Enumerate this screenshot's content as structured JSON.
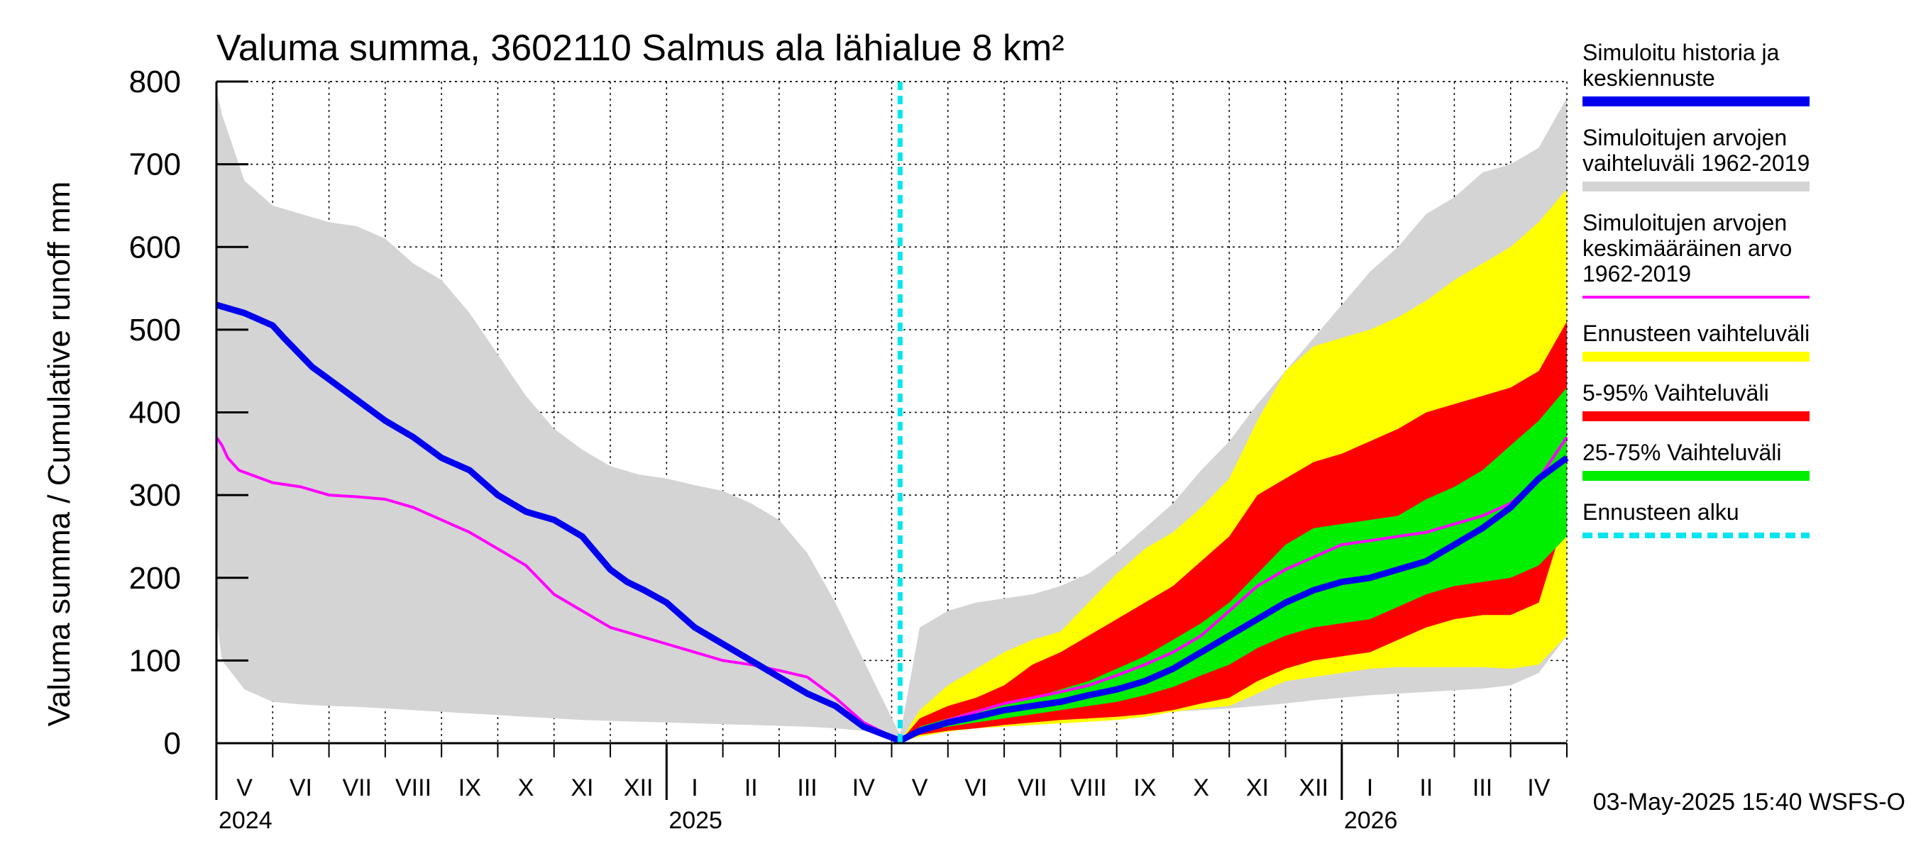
{
  "chart_data": {
    "type": "area",
    "title": "Valuma summa, 3602110 Salmus ala lähialue 8 km²",
    "ylabel": "Valuma summa / Cumulative runoff    mm",
    "ylim": [
      0,
      800
    ],
    "yticks": [
      0,
      100,
      200,
      300,
      400,
      500,
      600,
      700,
      800
    ],
    "x_range": [
      "2024-04-28",
      "2026-04-30"
    ],
    "forecast_start": "2025-05-03",
    "months": [
      {
        "label": "V",
        "start": 0
      },
      {
        "label": "VI",
        "start": 1
      },
      {
        "label": "VII",
        "start": 2
      },
      {
        "label": "VIII",
        "start": 3
      },
      {
        "label": "IX",
        "start": 4
      },
      {
        "label": "X",
        "start": 5
      },
      {
        "label": "XI",
        "start": 6
      },
      {
        "label": "XII",
        "start": 7
      },
      {
        "label": "I",
        "start": 8
      },
      {
        "label": "II",
        "start": 9
      },
      {
        "label": "III",
        "start": 10
      },
      {
        "label": "IV",
        "start": 11
      },
      {
        "label": "V",
        "start": 12
      },
      {
        "label": "VI",
        "start": 13
      },
      {
        "label": "VII",
        "start": 14
      },
      {
        "label": "VIII",
        "start": 15
      },
      {
        "label": "IX",
        "start": 16
      },
      {
        "label": "X",
        "start": 17
      },
      {
        "label": "XI",
        "start": 18
      },
      {
        "label": "XII",
        "start": 19
      },
      {
        "label": "I",
        "start": 20
      },
      {
        "label": "II",
        "start": 21
      },
      {
        "label": "III",
        "start": 22
      },
      {
        "label": "IV",
        "start": 23
      }
    ],
    "years": [
      {
        "label": "2024",
        "month_index": 0
      },
      {
        "label": "2025",
        "month_index": 8
      },
      {
        "label": "2026",
        "month_index": 20
      }
    ],
    "x_unit": "months since 2024-04-28",
    "series": [
      {
        "name": "Simuloitujen arvojen vaihteluväli 1962-2019",
        "kind": "band",
        "color": "#d4d4d4",
        "x": [
          0,
          0.1,
          0.5,
          1.0,
          1.5,
          2.0,
          2.5,
          3.0,
          3.5,
          4.0,
          4.5,
          5.0,
          5.5,
          6.0,
          6.5,
          7.0,
          7.5,
          8.0,
          8.5,
          9.0,
          9.5,
          10.0,
          10.5,
          11.0,
          11.5,
          12.15,
          12.5,
          13.0,
          13.5,
          14.0,
          14.5,
          15.0,
          15.5,
          16.0,
          16.5,
          17.0,
          17.5,
          18.0,
          18.5,
          19.0,
          19.5,
          20.0,
          20.5,
          21.0,
          21.5,
          22.0,
          22.5,
          23.0,
          23.5,
          24.0
        ],
        "upper": [
          790,
          760,
          680,
          650,
          640,
          630,
          625,
          610,
          580,
          560,
          520,
          470,
          420,
          380,
          355,
          335,
          325,
          320,
          312,
          305,
          290,
          270,
          230,
          170,
          100,
          10,
          140,
          160,
          170,
          175,
          180,
          190,
          205,
          230,
          260,
          290,
          330,
          365,
          410,
          450,
          490,
          530,
          570,
          600,
          640,
          660,
          690,
          700,
          720,
          780
        ],
        "lower": [
          150,
          100,
          65,
          50,
          47,
          45,
          44,
          42,
          40,
          38,
          36,
          34,
          32,
          30,
          28,
          27,
          26,
          25,
          24,
          23,
          22,
          21,
          20,
          18,
          15,
          5,
          10,
          16,
          20,
          23,
          26,
          28,
          30,
          32,
          36,
          38,
          40,
          42,
          45,
          48,
          52,
          55,
          58,
          60,
          62,
          64,
          66,
          70,
          85,
          130
        ]
      },
      {
        "name": "Ennusteen vaihteluväli",
        "kind": "band",
        "color": "#ffff00",
        "x": [
          12.15,
          12.5,
          13.0,
          13.5,
          14.0,
          14.5,
          15.0,
          15.5,
          16.0,
          16.5,
          17.0,
          17.5,
          18.0,
          18.5,
          19.0,
          19.5,
          20.0,
          20.5,
          21.0,
          21.5,
          22.0,
          22.5,
          23.0,
          23.5,
          24.0
        ],
        "upper": [
          2,
          40,
          70,
          90,
          110,
          125,
          135,
          170,
          205,
          235,
          255,
          285,
          320,
          390,
          450,
          480,
          490,
          500,
          515,
          535,
          560,
          580,
          600,
          630,
          670
        ],
        "lower": [
          2,
          8,
          14,
          18,
          20,
          22,
          24,
          26,
          28,
          32,
          38,
          42,
          45,
          60,
          75,
          80,
          85,
          90,
          92,
          92,
          92,
          92,
          90,
          95,
          130
        ]
      },
      {
        "name": "5-95% Vaihteluväli",
        "kind": "band",
        "color": "#ff0000",
        "x": [
          12.15,
          12.5,
          13.0,
          13.5,
          14.0,
          14.5,
          15.0,
          15.5,
          16.0,
          16.5,
          17.0,
          17.5,
          18.0,
          18.5,
          19.0,
          19.5,
          20.0,
          20.5,
          21.0,
          21.5,
          22.0,
          22.5,
          23.0,
          23.5,
          24.0
        ],
        "upper": [
          2,
          30,
          45,
          55,
          70,
          95,
          110,
          130,
          150,
          170,
          190,
          220,
          250,
          300,
          320,
          340,
          350,
          365,
          380,
          400,
          410,
          420,
          430,
          450,
          510
        ],
        "lower": [
          2,
          10,
          15,
          18,
          22,
          25,
          28,
          30,
          32,
          35,
          40,
          48,
          55,
          75,
          90,
          100,
          105,
          110,
          125,
          140,
          150,
          155,
          155,
          170,
          280
        ]
      },
      {
        "name": "25-75% Vaihteluväli",
        "kind": "band",
        "color": "#00ee00",
        "x": [
          12.15,
          12.5,
          13.0,
          13.5,
          14.0,
          14.5,
          15.0,
          15.5,
          16.0,
          16.5,
          17.0,
          17.5,
          18.0,
          18.5,
          19.0,
          19.5,
          20.0,
          20.5,
          21.0,
          21.5,
          22.0,
          22.5,
          23.0,
          23.5,
          24.0
        ],
        "upper": [
          2,
          20,
          30,
          40,
          48,
          55,
          65,
          75,
          90,
          105,
          125,
          145,
          170,
          205,
          240,
          260,
          265,
          270,
          275,
          295,
          310,
          330,
          360,
          390,
          430
        ],
        "lower": [
          2,
          14,
          20,
          25,
          30,
          35,
          40,
          45,
          50,
          58,
          68,
          82,
          95,
          115,
          130,
          140,
          145,
          150,
          165,
          180,
          190,
          195,
          200,
          215,
          250
        ]
      },
      {
        "name": "Simuloitujen arvojen keskimääräinen arvo 1962-2019",
        "kind": "line",
        "color": "#ff00ff",
        "x": [
          0,
          0.1,
          0.2,
          0.4,
          0.6,
          1.0,
          1.5,
          2.0,
          2.5,
          3.0,
          3.5,
          4.0,
          4.5,
          5.0,
          5.5,
          6.0,
          6.5,
          7.0,
          7.5,
          8.0,
          8.5,
          9.0,
          9.5,
          10.0,
          10.5,
          11.0,
          11.5,
          12.15,
          12.5,
          13.0,
          13.5,
          14.0,
          14.5,
          15.0,
          15.5,
          16.0,
          16.5,
          17.0,
          17.5,
          18.0,
          18.5,
          19.0,
          19.5,
          20.0,
          20.5,
          21.0,
          21.5,
          22.0,
          22.5,
          23.0,
          23.5,
          24.0
        ],
        "y": [
          370,
          360,
          345,
          330,
          325,
          315,
          310,
          300,
          298,
          295,
          285,
          270,
          255,
          235,
          215,
          180,
          160,
          140,
          130,
          120,
          110,
          100,
          95,
          88,
          80,
          55,
          25,
          3,
          15,
          28,
          38,
          48,
          55,
          62,
          70,
          82,
          95,
          110,
          130,
          160,
          190,
          210,
          225,
          240,
          245,
          250,
          255,
          265,
          275,
          290,
          320,
          370
        ]
      },
      {
        "name": "Simuloitu historia ja keskiennuste",
        "kind": "line",
        "color": "#0000ee",
        "x": [
          0,
          0.5,
          1.0,
          1.2,
          1.7,
          2.0,
          2.5,
          3.0,
          3.5,
          4.0,
          4.5,
          5.0,
          5.5,
          6.0,
          6.5,
          7.0,
          7.3,
          7.6,
          8.0,
          8.5,
          9.0,
          9.5,
          10.0,
          10.5,
          11.0,
          11.5,
          12.15,
          12.5,
          13.0,
          13.5,
          14.0,
          14.5,
          15.0,
          15.5,
          16.0,
          16.5,
          17.0,
          17.5,
          18.0,
          18.5,
          19.0,
          19.5,
          20.0,
          20.5,
          21.0,
          21.5,
          22.0,
          22.5,
          23.0,
          23.5,
          24.0
        ],
        "y": [
          530,
          520,
          505,
          490,
          455,
          440,
          415,
          390,
          370,
          345,
          330,
          300,
          280,
          270,
          250,
          210,
          195,
          185,
          170,
          140,
          120,
          100,
          80,
          60,
          45,
          20,
          3,
          15,
          25,
          32,
          40,
          45,
          50,
          58,
          65,
          75,
          90,
          110,
          130,
          150,
          170,
          185,
          195,
          200,
          210,
          220,
          240,
          260,
          285,
          320,
          345
        ]
      }
    ],
    "legend": [
      {
        "lines": [
          "Simuloitu historia ja",
          "keskiennuste"
        ],
        "color": "#0000ee",
        "style": "solid"
      },
      {
        "lines": [
          "Simuloitujen arvojen",
          "vaihteluväli 1962-2019"
        ],
        "color": "#d4d4d4",
        "style": "solid"
      },
      {
        "lines": [
          "Simuloitujen arvojen",
          "keskimääräinen arvo",
          "   1962-2019"
        ],
        "color": "#ff00ff",
        "style": "thin"
      },
      {
        "lines": [
          "Ennusteen vaihteluväli"
        ],
        "color": "#ffff00",
        "style": "solid"
      },
      {
        "lines": [
          "5-95% Vaihteluväli"
        ],
        "color": "#ff0000",
        "style": "solid"
      },
      {
        "lines": [
          "25-75% Vaihteluväli"
        ],
        "color": "#00ee00",
        "style": "solid"
      },
      {
        "lines": [
          "Ennusteen alku"
        ],
        "color": "#00e5ee",
        "style": "dashed"
      }
    ],
    "timestamp": "03-May-2025 15:40 WSFS-O"
  }
}
